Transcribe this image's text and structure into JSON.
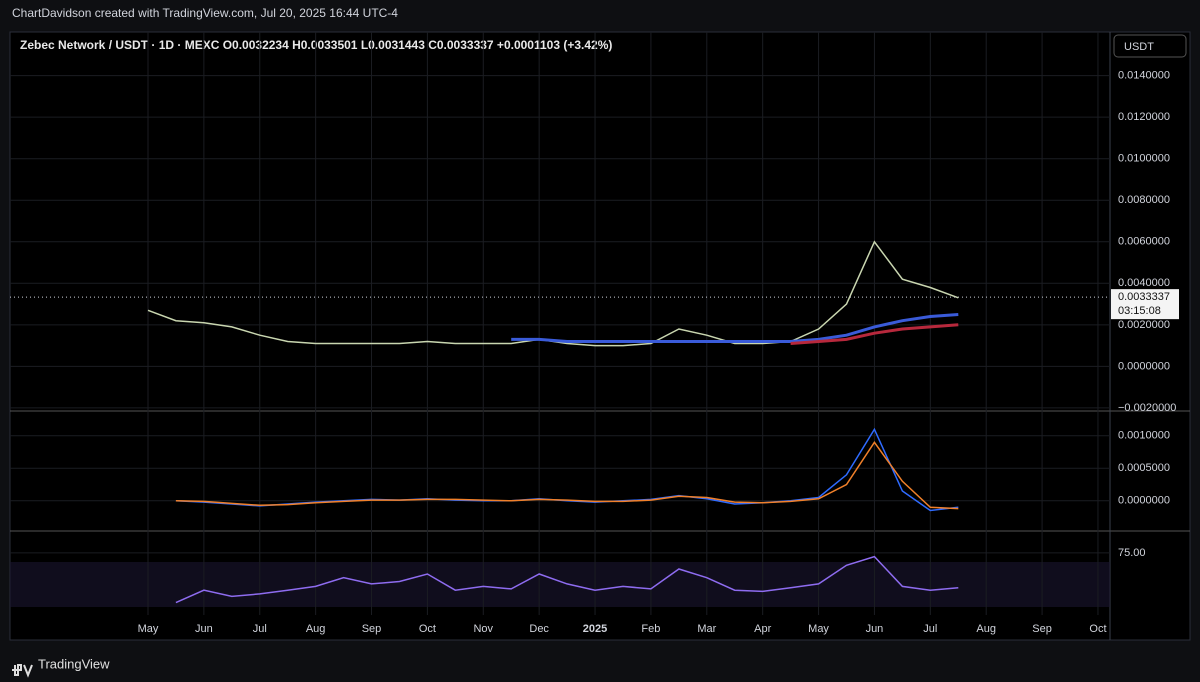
{
  "header": "ChartDavidson created with TradingView.com, Jul 20, 2025 16:44 UTC-4",
  "footer": "TradingView",
  "currency_button": "USDT",
  "chart_data": [
    {
      "type": "line",
      "title": "Zebec Network / USDT · 1D · MEXC   O0.0032234  H0.0033501  L0.0031443  C0.0033337  +0.0001103 (+3.42%)",
      "categories": [
        "May",
        null,
        "Jun",
        null,
        "Jul",
        null,
        "Aug",
        null,
        "Sep",
        null,
        "Oct",
        null,
        "Nov",
        null,
        "Dec",
        null,
        "2025",
        null,
        "Feb",
        null,
        "Mar",
        null,
        "Apr",
        null,
        "May",
        null,
        "Jun",
        null,
        "Jul",
        null,
        "Aug",
        null,
        "Sep",
        null,
        "Oct"
      ],
      "series": [
        {
          "color": "#c9d6b0",
          "values": [
            0.0027,
            0.0022,
            0.0021,
            0.0019,
            0.0015,
            0.0012,
            0.0011,
            0.0011,
            0.0011,
            0.0011,
            0.0012,
            0.0011,
            0.0011,
            0.0011,
            0.0013,
            0.0011,
            0.001,
            0.001,
            0.0011,
            0.0018,
            0.0015,
            0.0011,
            0.0011,
            0.0012,
            0.0018,
            0.003,
            0.006,
            0.0042,
            0.0038,
            0.0033,
            null,
            null,
            null,
            null,
            null
          ]
        },
        {
          "color": "#3a5bd9",
          "values": [
            null,
            null,
            null,
            null,
            null,
            null,
            null,
            null,
            null,
            null,
            null,
            null,
            null,
            0.0013,
            0.0013,
            0.0012,
            0.0012,
            0.0012,
            0.0012,
            0.0012,
            0.0012,
            0.0012,
            0.0012,
            0.0012,
            0.0013,
            0.0015,
            0.0019,
            0.0022,
            0.0024,
            0.0025,
            null,
            null,
            null,
            null,
            null
          ]
        },
        {
          "color": "#b7283c",
          "values": [
            null,
            null,
            null,
            null,
            null,
            null,
            null,
            null,
            null,
            null,
            null,
            null,
            null,
            null,
            null,
            null,
            null,
            null,
            null,
            null,
            null,
            null,
            null,
            0.0011,
            0.0012,
            0.0013,
            0.0016,
            0.0018,
            0.0019,
            0.002,
            null,
            null,
            null,
            null,
            null
          ]
        }
      ],
      "ylim": [
        -0.0021,
        0.0161
      ],
      "yticks": [
        {
          "value": 0.014,
          "label": "0.0140000"
        },
        {
          "value": 0.012,
          "label": "0.0120000"
        },
        {
          "value": 0.01,
          "label": "0.0100000"
        },
        {
          "value": 0.008,
          "label": "0.0080000"
        },
        {
          "value": 0.006,
          "label": "0.0060000"
        },
        {
          "value": 0.004,
          "label": "0.0040000"
        },
        {
          "value": 0.002,
          "label": "0.0020000"
        },
        {
          "value": 0,
          "label": "0.0000000"
        },
        {
          "value": -0.002,
          "label": "−0.0020000"
        }
      ],
      "last_price": 0.0033337,
      "countdown": "03:15:08",
      "grid": true
    },
    {
      "type": "line",
      "series": [
        {
          "color": "#2f6bff",
          "values": [
            null,
            0,
            -2e-05,
            -5e-05,
            -8e-05,
            -5e-05,
            -2e-05,
            0,
            2e-05,
            1e-05,
            3e-05,
            1e-05,
            0,
            0,
            3e-05,
            0,
            -2e-05,
            0,
            2e-05,
            8e-05,
            3e-05,
            -5e-05,
            -3e-05,
            0,
            5e-05,
            0.0004,
            0.0011,
            0.00015,
            -0.00015,
            -0.0001,
            null,
            null,
            null,
            null,
            null
          ]
        },
        {
          "color": "#f0802a",
          "values": [
            null,
            0,
            -1e-05,
            -4e-05,
            -7e-05,
            -6e-05,
            -3e-05,
            -1e-05,
            1e-05,
            1e-05,
            2e-05,
            2e-05,
            1e-05,
            0,
            2e-05,
            1e-05,
            -1e-05,
            -1e-05,
            1e-05,
            7e-05,
            5e-05,
            -2e-05,
            -3e-05,
            -1e-05,
            3e-05,
            0.00025,
            0.0009,
            0.0003,
            -0.0001,
            -0.00012,
            null,
            null,
            null,
            null,
            null
          ]
        }
      ],
      "ylim": [
        -0.00045,
        0.00135
      ],
      "yticks": [
        {
          "value": 0.001,
          "label": "0.0010000"
        },
        {
          "value": 0.0005,
          "label": "0.0005000"
        },
        {
          "value": 0,
          "label": "0.0000000"
        }
      ],
      "grid": true
    },
    {
      "type": "line",
      "series": [
        {
          "color": "#8e6cf0",
          "values": [
            null,
            35,
            45,
            40,
            42,
            45,
            48,
            55,
            50,
            52,
            58,
            45,
            48,
            46,
            58,
            50,
            45,
            48,
            46,
            62,
            55,
            45,
            44,
            47,
            50,
            65,
            72,
            48,
            45,
            47,
            null,
            null,
            null,
            null,
            null
          ]
        }
      ],
      "ylim": [
        25,
        91
      ],
      "yticks": [
        {
          "value": 75,
          "label": "75.00"
        }
      ],
      "grid": true
    }
  ]
}
